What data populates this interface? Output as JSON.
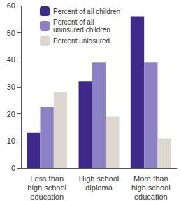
{
  "chart_data": {
    "type": "bar",
    "categories": [
      "Less than\nhigh school\neducation",
      "High school\ndiploma",
      "More than\nhigh school\neducation"
    ],
    "series": [
      {
        "name": "Percent of all children",
        "color": "#3f2a8c",
        "values": [
          13,
          32,
          56
        ]
      },
      {
        "name": "Percent of all\nuninsured children",
        "color": "#8d81c6",
        "values": [
          22.5,
          39,
          39
        ]
      },
      {
        "name": "Percent uninsured",
        "color": "#ddd7cf",
        "values": [
          28,
          19,
          11
        ]
      }
    ],
    "ylim": [
      0,
      60
    ],
    "yticks": [
      0,
      10,
      20,
      30,
      40,
      50,
      60
    ],
    "grid": false,
    "legend": "upper left"
  }
}
